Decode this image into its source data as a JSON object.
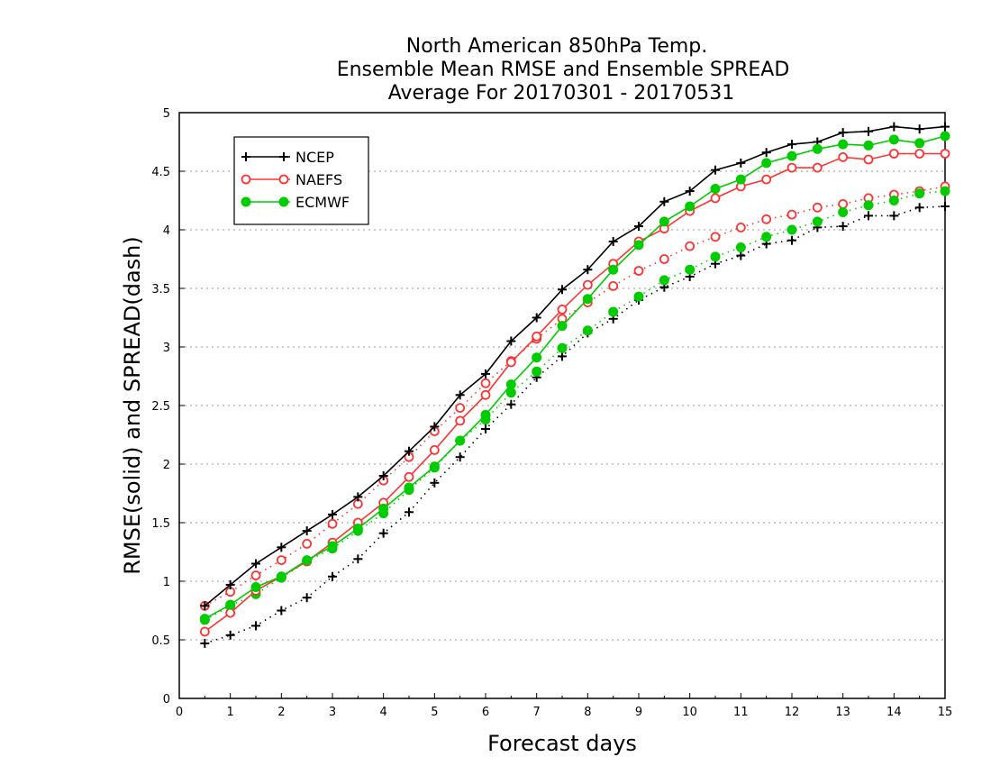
{
  "chart_data": {
    "type": "line",
    "title_lines": [
      "North American 850hPa Temp.",
      "Ensemble Mean RMSE and Ensemble SPREAD",
      "Average For 20170301 - 20170531"
    ],
    "xlabel": "Forecast days",
    "ylabel": "RMSE(solid) and SPREAD(dash)",
    "xlim": [
      0,
      15
    ],
    "ylim": [
      0,
      5
    ],
    "xticks": [
      0,
      1,
      2,
      3,
      4,
      5,
      6,
      7,
      8,
      9,
      10,
      11,
      12,
      13,
      14,
      15
    ],
    "yticks": [
      0,
      0.5,
      1,
      1.5,
      2,
      2.5,
      3,
      3.5,
      4,
      4.5,
      5
    ],
    "ytick_labels": [
      "0",
      "0.5",
      "1",
      "1.5",
      "2",
      "2.5",
      "3",
      "3.5",
      "4",
      "4.5",
      "5"
    ],
    "grid": "horizontal dotted",
    "legend_position": "top-left",
    "x": [
      0.5,
      1,
      1.5,
      2,
      2.5,
      3,
      3.5,
      4,
      4.5,
      5,
      5.5,
      6,
      6.5,
      7,
      7.5,
      8,
      8.5,
      9,
      9.5,
      10,
      10.5,
      11,
      11.5,
      12,
      12.5,
      13,
      13.5,
      14,
      14.5,
      15
    ],
    "series": [
      {
        "name": "NCEP",
        "metric": "RMSE",
        "color": "#000000",
        "marker": "plus",
        "dash": "solid",
        "values": [
          0.79,
          0.97,
          1.15,
          1.29,
          1.43,
          1.57,
          1.72,
          1.9,
          2.11,
          2.32,
          2.59,
          2.77,
          3.05,
          3.25,
          3.49,
          3.66,
          3.9,
          4.03,
          4.24,
          4.33,
          4.51,
          4.57,
          4.66,
          4.73,
          4.75,
          4.83,
          4.84,
          4.88,
          4.86,
          4.88
        ]
      },
      {
        "name": "NAEFS",
        "metric": "RMSE",
        "color": "#ff3333",
        "marker": "circle-open",
        "dash": "solid",
        "values": [
          0.57,
          0.73,
          0.92,
          1.04,
          1.17,
          1.33,
          1.5,
          1.67,
          1.89,
          2.12,
          2.37,
          2.59,
          2.87,
          3.09,
          3.32,
          3.53,
          3.71,
          3.9,
          4.01,
          4.16,
          4.27,
          4.37,
          4.43,
          4.53,
          4.53,
          4.62,
          4.6,
          4.65,
          4.65,
          4.65
        ]
      },
      {
        "name": "ECMWF",
        "metric": "RMSE",
        "color": "#00cc00",
        "marker": "circle-filled",
        "dash": "solid",
        "values": [
          0.68,
          0.8,
          0.95,
          1.04,
          1.18,
          1.3,
          1.45,
          1.62,
          1.8,
          1.98,
          2.2,
          2.42,
          2.68,
          2.91,
          3.18,
          3.41,
          3.66,
          3.87,
          4.07,
          4.2,
          4.35,
          4.43,
          4.57,
          4.63,
          4.69,
          4.73,
          4.72,
          4.77,
          4.74,
          4.8
        ]
      },
      {
        "name": "NCEP",
        "metric": "SPREAD",
        "color": "#000000",
        "marker": "plus",
        "dash": "dotted",
        "values": [
          0.47,
          0.54,
          0.62,
          0.75,
          0.86,
          1.04,
          1.19,
          1.41,
          1.59,
          1.84,
          2.06,
          2.3,
          2.51,
          2.74,
          2.92,
          3.12,
          3.24,
          3.4,
          3.51,
          3.6,
          3.71,
          3.78,
          3.88,
          3.91,
          4.02,
          4.03,
          4.12,
          4.12,
          4.19,
          4.2
        ]
      },
      {
        "name": "NAEFS",
        "metric": "SPREAD",
        "color": "#ff3333",
        "marker": "circle-open",
        "dash": "dotted",
        "values": [
          0.79,
          0.91,
          1.05,
          1.18,
          1.32,
          1.49,
          1.66,
          1.86,
          2.06,
          2.28,
          2.48,
          2.69,
          2.88,
          3.07,
          3.24,
          3.38,
          3.52,
          3.65,
          3.75,
          3.86,
          3.94,
          4.02,
          4.09,
          4.13,
          4.19,
          4.22,
          4.27,
          4.3,
          4.33,
          4.37
        ]
      },
      {
        "name": "ECMWF",
        "metric": "SPREAD",
        "color": "#00cc00",
        "marker": "circle-filled",
        "dash": "dotted",
        "values": [
          0.67,
          0.79,
          0.89,
          1.03,
          1.17,
          1.28,
          1.43,
          1.58,
          1.78,
          1.97,
          2.2,
          2.38,
          2.61,
          2.79,
          2.99,
          3.14,
          3.3,
          3.43,
          3.57,
          3.66,
          3.77,
          3.85,
          3.94,
          4.0,
          4.07,
          4.15,
          4.21,
          4.25,
          4.31,
          4.33
        ]
      }
    ],
    "legend": [
      {
        "label": "NCEP",
        "color": "#000000",
        "marker": "plus"
      },
      {
        "label": "NAEFS",
        "color": "#ff3333",
        "marker": "circle-open"
      },
      {
        "label": "ECMWF",
        "color": "#00cc00",
        "marker": "circle-filled"
      }
    ]
  }
}
